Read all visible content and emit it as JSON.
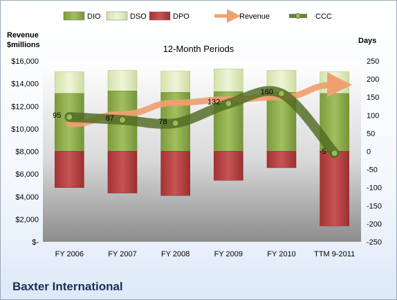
{
  "chart_data": {
    "type": "bar",
    "subtitle": "12-Month Periods",
    "company": "Baxter International",
    "categories": [
      "FY 2006",
      "FY 2007",
      "FY 2008",
      "FY 2009",
      "FY 2010",
      "TTM 9-2011"
    ],
    "left_axis": {
      "title_line1": "Revenue",
      "title_line2": "$millions",
      "min": 0,
      "max": 16000,
      "step": 2000,
      "tick_labels": [
        "$-",
        "$2,000",
        "$4,000",
        "$6,000",
        "$8,000",
        "$10,000",
        "$12,000",
        "$14,000",
        "$16,000"
      ]
    },
    "right_axis": {
      "title": "Days",
      "min": -250,
      "max": 250,
      "step": 50,
      "tick_labels": [
        "-250",
        "-200",
        "-150",
        "-100",
        "-50",
        "0",
        "50",
        "100",
        "150",
        "200",
        "250"
      ]
    },
    "legend": [
      "DIO",
      "DSO",
      "DPO",
      "Revenue",
      "CCC"
    ],
    "legend_position": "top",
    "series": [
      {
        "name": "DIO",
        "axis": "days",
        "values": [
          160,
          167,
          163,
          165,
          163,
          160
        ]
      },
      {
        "name": "DSO",
        "axis": "days",
        "values": [
          60,
          57,
          59,
          63,
          61,
          60
        ]
      },
      {
        "name": "DPO",
        "axis": "days",
        "values": [
          -100,
          -115,
          -122,
          -80,
          -45,
          -206
        ]
      },
      {
        "name": "Revenue",
        "axis": "revenue",
        "values": [
          10400,
          11300,
          12300,
          12600,
          12800,
          13900
        ]
      },
      {
        "name": "CCC",
        "axis": "days",
        "values": [
          95,
          87,
          78,
          132,
          160,
          -5
        ]
      }
    ],
    "colors": {
      "DIO": "#8aa84a",
      "DSO": "#dbe8b5",
      "DPO": "#b33c3c",
      "Revenue": "#f0a070",
      "CCC": "#5a7a28"
    },
    "grid": false
  }
}
